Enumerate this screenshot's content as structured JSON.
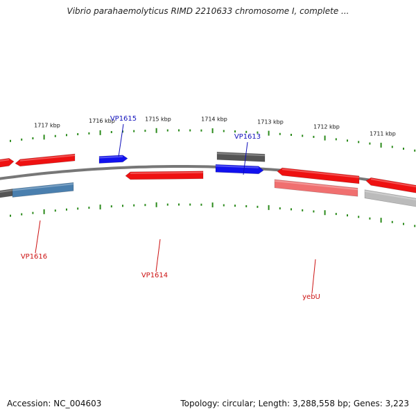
{
  "title": "Vibrio parahaemolyticus RIMD 2210633 chromosome I, complete ...",
  "footer": {
    "accession": "Accession: NC_004603",
    "summary": "Topology: circular; Length: 3,288,558 bp; Genes: 3,223"
  },
  "colors": {
    "backbone": "#777777",
    "ticks": "#2a8a1a",
    "tick_labels": "#111111",
    "forward_label": "#1010bb",
    "reverse_label": "#cc1111"
  },
  "scale": {
    "labels": [
      {
        "text": "1717 kbp",
        "pos": 1717
      },
      {
        "text": "1716 kbp",
        "pos": 1716
      },
      {
        "text": "1715 kbp",
        "pos": 1715
      },
      {
        "text": "1714 kbp",
        "pos": 1714
      },
      {
        "text": "1713 kbp",
        "pos": 1713
      },
      {
        "text": "1712 kbp",
        "pos": 1712
      },
      {
        "text": "1711 kbp",
        "pos": 1711
      }
    ]
  },
  "features": [
    {
      "id": "f1",
      "strand": "forward",
      "color": "#ee1111"
    },
    {
      "id": "f2",
      "strand": "forward",
      "color": "#ee1111"
    },
    {
      "id": "f3",
      "strand": "forward",
      "color": "#1111ee"
    },
    {
      "id": "f4",
      "strand": "forward",
      "color": "#555555"
    },
    {
      "id": "f5",
      "strand": "forward",
      "color": "#1111ee"
    },
    {
      "id": "f6",
      "strand": "forward",
      "color": "#ee1111"
    },
    {
      "id": "f7",
      "strand": "forward",
      "color": "#ee1111"
    },
    {
      "id": "f8",
      "strand": "reverse",
      "color": "#555555"
    },
    {
      "id": "f9",
      "strand": "reverse",
      "color": "#4a7fae"
    },
    {
      "id": "f10",
      "strand": "reverse",
      "color": "#ee1111"
    },
    {
      "id": "f11",
      "strand": "reverse",
      "color": "#f07070"
    },
    {
      "id": "f12",
      "strand": "reverse",
      "color": "#bbbbbb"
    }
  ],
  "gene_labels": [
    {
      "text": "VP1615",
      "strand": "forward"
    },
    {
      "text": "VP1613",
      "strand": "forward"
    },
    {
      "text": "VP1616",
      "strand": "reverse"
    },
    {
      "text": "VP1614",
      "strand": "reverse"
    },
    {
      "text": "yebU",
      "strand": "reverse"
    }
  ]
}
